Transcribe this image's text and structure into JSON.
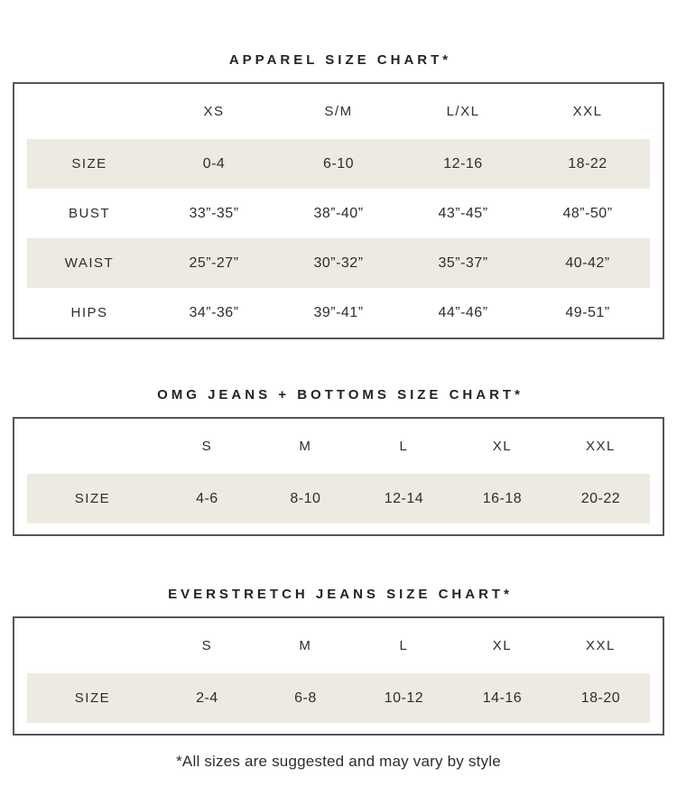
{
  "page": {
    "footnote": "*All sizes are suggested and may vary by style"
  },
  "colors": {
    "stripe": "#edeae2",
    "table_border": "#54555a",
    "text": "#2d2d2d",
    "background": "#ffffff"
  },
  "charts": [
    {
      "title": "APPAREL SIZE CHART*",
      "columns": [
        "",
        "XS",
        "S/M",
        "L/XL",
        "XXL"
      ],
      "rows": [
        {
          "label": "SIZE",
          "values": [
            "0-4",
            "6-10",
            "12-16",
            "18-22"
          ]
        },
        {
          "label": "BUST",
          "values": [
            "33”-35”",
            "38”-40”",
            "43”-45”",
            "48”-50”"
          ]
        },
        {
          "label": "WAIST",
          "values": [
            "25”-27”",
            "30”-32”",
            "35”-37”",
            "40-42”"
          ]
        },
        {
          "label": "HIPS",
          "values": [
            "34”-36”",
            "39”-41”",
            "44”-46”",
            "49-51”"
          ]
        }
      ]
    },
    {
      "title": "OMG JEANS + BOTTOMS SIZE CHART*",
      "columns": [
        "",
        "S",
        "M",
        "L",
        "XL",
        "XXL"
      ],
      "rows": [
        {
          "label": "SIZE",
          "values": [
            "4-6",
            "8-10",
            "12-14",
            "16-18",
            "20-22"
          ]
        }
      ]
    },
    {
      "title": "EVERSTRETCH JEANS SIZE CHART*",
      "columns": [
        "",
        "S",
        "M",
        "L",
        "XL",
        "XXL"
      ],
      "rows": [
        {
          "label": "SIZE",
          "values": [
            "2-4",
            "6-8",
            "10-12",
            "14-16",
            "18-20"
          ]
        }
      ]
    }
  ]
}
